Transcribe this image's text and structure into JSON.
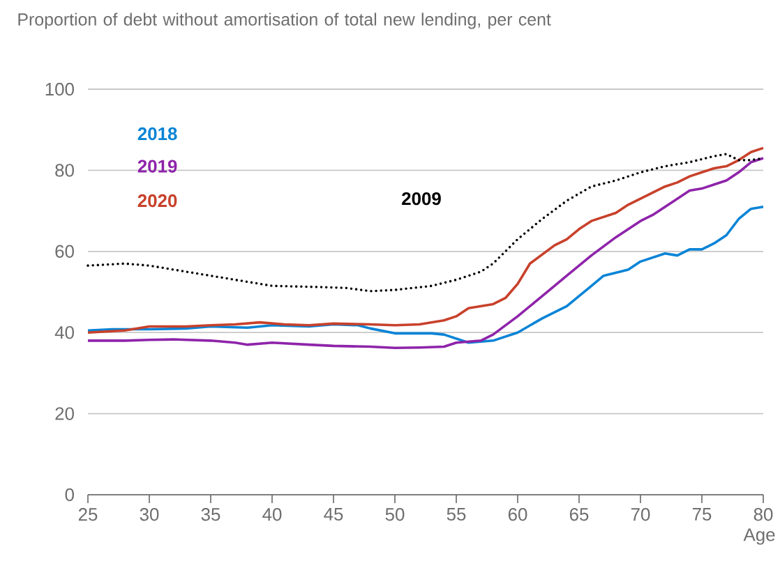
{
  "chart_data": {
    "type": "line",
    "title": "Proportion of debt without amortisation of total new lending, per cent",
    "xlabel": "Age",
    "xlim": [
      25,
      80
    ],
    "xticks": [
      25,
      30,
      35,
      40,
      45,
      50,
      55,
      60,
      65,
      70,
      75,
      80
    ],
    "ylim": [
      0,
      100
    ],
    "yticks": [
      0,
      20,
      40,
      60,
      80,
      100
    ],
    "grid": "y",
    "legend": false,
    "series": [
      {
        "name": "2018",
        "color": "#0a84d6",
        "line_style": "solid",
        "x": [
          25,
          27,
          30,
          33,
          35,
          38,
          40,
          43,
          45,
          47,
          48,
          50,
          53,
          54,
          55,
          56,
          58,
          60,
          62,
          64,
          66,
          67,
          69,
          70,
          72,
          73,
          74,
          75,
          76,
          77,
          78,
          79,
          80
        ],
        "values": [
          40.5,
          40.8,
          40.8,
          41,
          41.5,
          41.2,
          41.8,
          41.5,
          42,
          41.8,
          41,
          39.8,
          39.8,
          39.5,
          38.5,
          37.5,
          38,
          40,
          43.5,
          46.5,
          51.5,
          54,
          55.5,
          57.5,
          59.5,
          59,
          60.5,
          60.5,
          62,
          64,
          68,
          70.5,
          71
        ]
      },
      {
        "name": "2019",
        "color": "#8e24aa",
        "line_style": "solid",
        "x": [
          25,
          28,
          30,
          32,
          35,
          37,
          38,
          40,
          43,
          45,
          48,
          50,
          52,
          54,
          55,
          57,
          58,
          60,
          62,
          64,
          66,
          68,
          70,
          71,
          72,
          73,
          74,
          75,
          76,
          77,
          78,
          79,
          80
        ],
        "values": [
          38,
          38,
          38.2,
          38.3,
          38,
          37.5,
          37,
          37.5,
          37,
          36.7,
          36.5,
          36.2,
          36.3,
          36.5,
          37.5,
          38,
          39.5,
          44,
          49,
          54,
          59,
          63.5,
          67.5,
          69,
          71,
          73,
          75,
          75.5,
          76.5,
          77.5,
          79.5,
          82,
          83
        ]
      },
      {
        "name": "2020",
        "color": "#c8412b",
        "line_style": "solid",
        "x": [
          25,
          28,
          30,
          33,
          35,
          37,
          39,
          41,
          43,
          45,
          48,
          50,
          52,
          54,
          55,
          56,
          58,
          59,
          60,
          61,
          63,
          64,
          65,
          66,
          68,
          69,
          70,
          71,
          72,
          73,
          74,
          75,
          76,
          77,
          78,
          79,
          80
        ],
        "values": [
          40,
          40.5,
          41.5,
          41.5,
          41.8,
          42,
          42.5,
          42,
          41.8,
          42.2,
          42,
          41.8,
          42,
          43,
          44,
          46,
          47,
          48.5,
          52,
          57,
          61.5,
          63,
          65.5,
          67.5,
          69.5,
          71.5,
          73,
          74.5,
          76,
          77,
          78.5,
          79.5,
          80.5,
          81,
          82.5,
          84.5,
          85.5
        ]
      },
      {
        "name": "2009",
        "color": "#000000",
        "line_style": "dotted",
        "x": [
          25,
          28,
          30,
          33,
          35,
          38,
          40,
          44,
          46,
          48,
          50,
          53,
          55,
          57,
          58,
          60,
          62,
          64,
          66,
          68,
          70,
          72,
          74,
          76,
          77,
          78,
          79,
          80
        ],
        "values": [
          56.5,
          57,
          56.5,
          55,
          54,
          52.5,
          51.5,
          51.2,
          51,
          50.2,
          50.5,
          51.5,
          53,
          55,
          57,
          63,
          68,
          72.5,
          76,
          77.5,
          79.5,
          81,
          82,
          83.5,
          84,
          82.5,
          82.5,
          83
        ]
      }
    ]
  }
}
